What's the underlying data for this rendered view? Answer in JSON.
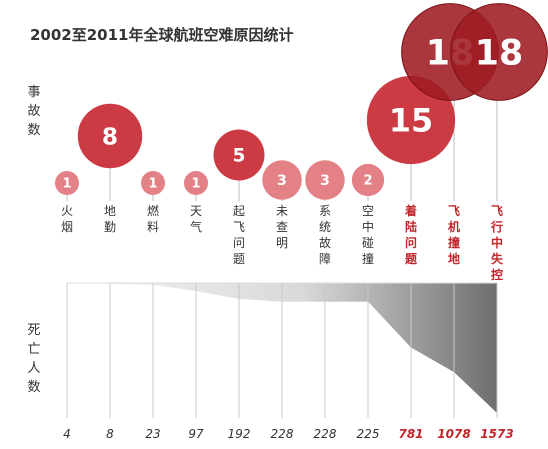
{
  "chart_data": {
    "type": "bubble-area",
    "title": "2002至2011年全球航班空难原因统计",
    "top_ylabel": "事故数",
    "bottom_ylabel": "死亡人数",
    "categories": [
      "火烟",
      "地勤",
      "燃料",
      "天气",
      "起飞问题",
      "未查明",
      "系统故障",
      "空中碰撞",
      "着陆问题",
      "飞机撞地",
      "飞行中失控"
    ],
    "highlighted": [
      false,
      false,
      false,
      false,
      false,
      false,
      false,
      false,
      true,
      true,
      true
    ],
    "accidents": [
      1,
      8,
      1,
      1,
      5,
      3,
      3,
      2,
      15,
      18,
      18
    ],
    "deaths": [
      4,
      8,
      23,
      97,
      192,
      228,
      228,
      225,
      781,
      1078,
      1573
    ],
    "colors": {
      "bubble_dark": "#9e1b22",
      "bubble_mid": "#c9303a",
      "bubble_light": "#e37a80",
      "highlight_text": "#c0272d",
      "area_dark": "#7a7a7a",
      "area_light": "#f2f2f2"
    }
  }
}
